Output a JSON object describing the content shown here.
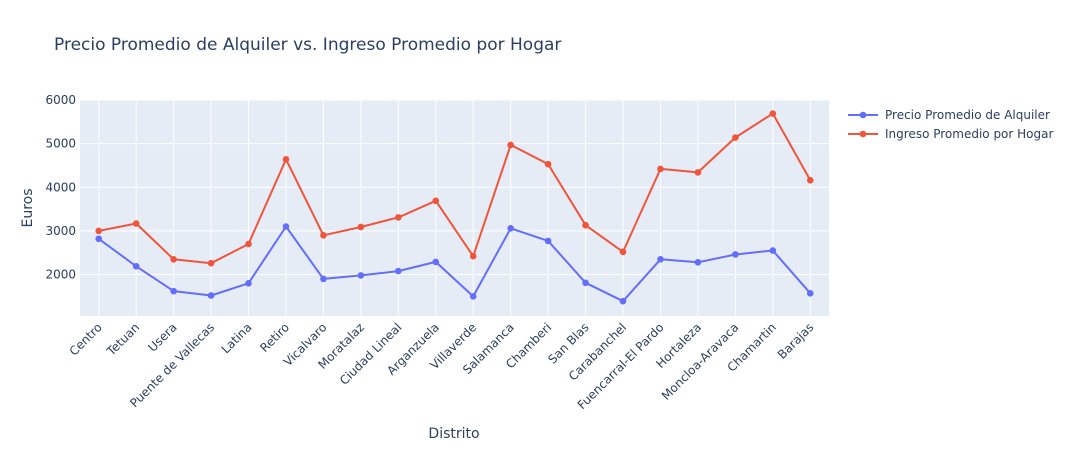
{
  "chart_data": {
    "type": "line",
    "title": "Precio Promedio de Alquiler vs. Ingreso Promedio por Hogar",
    "xlabel": "Distrito",
    "ylabel": "Euros",
    "ylim": [
      1050,
      6000
    ],
    "yticks": [
      2000,
      3000,
      4000,
      5000,
      6000
    ],
    "grid": true,
    "legend_position": "top-right",
    "plot_background": "#e5ecf6",
    "categories": [
      "Centro",
      "Tetuan",
      "Usera",
      "Puente de Vallecas",
      "Latina",
      "Retiro",
      "Vicalvaro",
      "Moratalaz",
      "Ciudad Lineal",
      "Arganzuela",
      "Villaverde",
      "Salamanca",
      "Chamberi",
      "San Blas",
      "Carabanchel",
      "Fuencarral-El Pardo",
      "Hortaleza",
      "Moncloa-Aravaca",
      "Chamartin",
      "Barajas"
    ],
    "series": [
      {
        "name": "Precio Promedio de Alquiler",
        "color": "#636efa",
        "values": [
          2820,
          2190,
          1620,
          1520,
          1800,
          3100,
          1900,
          1980,
          2080,
          2290,
          1500,
          3060,
          2770,
          1810,
          1390,
          2350,
          2280,
          2460,
          2550,
          1570
        ]
      },
      {
        "name": "Ingreso Promedio por Hogar",
        "color": "#ef553b",
        "values": [
          3000,
          3170,
          2350,
          2260,
          2700,
          4640,
          2900,
          3090,
          3310,
          3690,
          2420,
          4970,
          4530,
          3130,
          2520,
          4420,
          4340,
          5140,
          5690,
          4160
        ]
      }
    ]
  }
}
